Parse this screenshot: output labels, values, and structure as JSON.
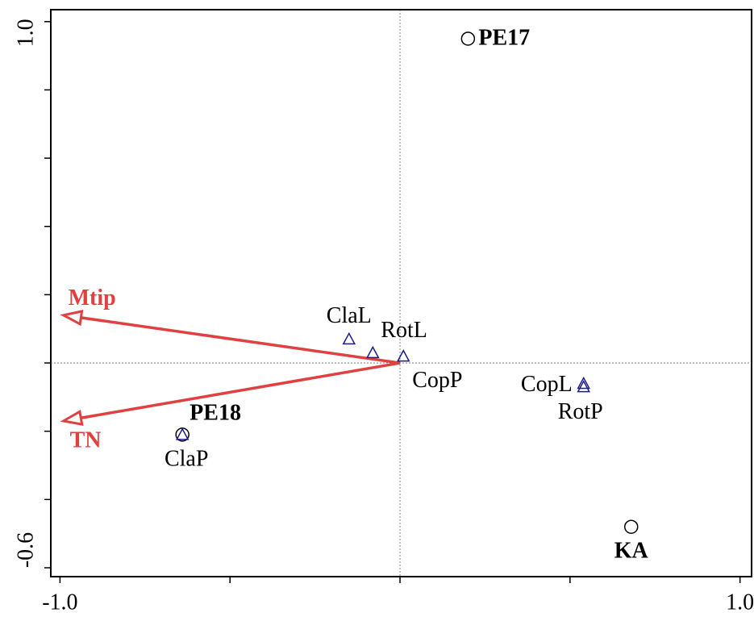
{
  "chart_data": {
    "type": "scatter",
    "xlim": [
      -1.027,
      1.034
    ],
    "ylim": [
      -0.626,
      1.035
    ],
    "xticks": [
      {
        "value": -1,
        "label": "-1.0"
      },
      {
        "value": 1,
        "label": "1.0"
      }
    ],
    "xminor_ticks": [
      -0.5,
      0,
      0.5
    ],
    "yticks": [
      {
        "value": 1,
        "label": "1.0"
      },
      {
        "value": -0.6,
        "label": "-0.6"
      }
    ],
    "yminor_ticks": [
      0.8,
      0.6,
      0.4,
      0.2,
      0,
      -0.2,
      -0.4
    ],
    "zero_lines": true,
    "series": [
      {
        "marker": "circle",
        "color": "#000000",
        "bold": true,
        "labels": [
          "PE17",
          "PE18",
          "KA"
        ],
        "x": [
          0.2,
          -0.64,
          0.68
        ],
        "y": [
          0.95,
          -0.21,
          -0.48
        ]
      },
      {
        "marker": "triangle",
        "color": "#1a1a8c",
        "bold": false,
        "labels": [
          "ClaL",
          "RotL",
          "CopP",
          "CopL",
          "RotP",
          "ClaP"
        ],
        "x": [
          -0.15,
          -0.08,
          0.01,
          0.54,
          0.54,
          -0.64
        ],
        "y": [
          0.07,
          0.03,
          0.02,
          -0.06,
          -0.07,
          -0.21
        ]
      }
    ],
    "arrows": {
      "color": "#e04040",
      "labels": [
        "Mtip",
        "TN"
      ],
      "x": [
        -0.99,
        -0.99
      ],
      "y": [
        0.14,
        -0.17
      ]
    }
  }
}
